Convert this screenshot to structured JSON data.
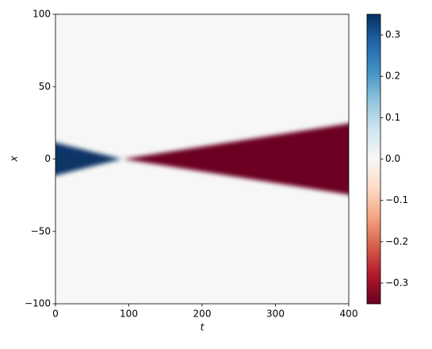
{
  "chart_data": {
    "type": "heatmap",
    "xlabel": "t",
    "ylabel": "x",
    "xlim": [
      0,
      400
    ],
    "xticks": [
      0,
      100,
      200,
      300,
      400
    ],
    "ylim": [
      -100,
      100
    ],
    "yticks": [
      {
        "value": -100,
        "label": "−100"
      },
      {
        "value": -50,
        "label": "−50"
      },
      0,
      50,
      100
    ],
    "colormap": "RdBu",
    "clim": [
      -0.35,
      0.35
    ],
    "cticks": [
      {
        "value": -0.3,
        "label": "−0.3"
      },
      {
        "value": -0.2,
        "label": "−0.2"
      },
      {
        "value": -0.1,
        "label": "−0.1"
      },
      {
        "value": 0,
        "label": "0.0"
      },
      0.1,
      0.2,
      0.3
    ],
    "background": 0,
    "regions": [
      {
        "t": [
          0,
          90
        ],
        "x_halfwidth": [
          12,
          0
        ],
        "value": 0.345
      },
      {
        "t": [
          92,
          400
        ],
        "x_halfwidth": [
          0,
          25
        ],
        "value": -0.345
      }
    ]
  }
}
